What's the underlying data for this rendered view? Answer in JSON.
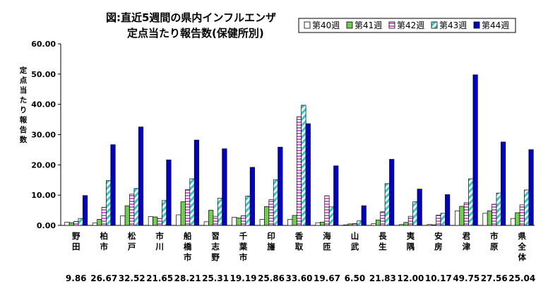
{
  "chart_data": {
    "type": "bar",
    "title_line1": "図:直近5週間の県内インフルエンザ",
    "title_line2": "定点当たり報告数(保健所別)",
    "ylabel": "定点当たり報告数",
    "ylim": [
      0,
      60
    ],
    "yticks": [
      "0.00",
      "10.00",
      "20.00",
      "30.00",
      "40.00",
      "50.00",
      "60.00"
    ],
    "grid": false,
    "legend_position": "top-right",
    "categories": [
      "野田",
      "柏市",
      "松戸",
      "市川",
      "船橋市",
      "習志野",
      "千葉市",
      "印旛",
      "香取",
      "海匝",
      "山武",
      "長生",
      "夷隅",
      "安房",
      "君津",
      "市原",
      "県全体"
    ],
    "series": [
      {
        "name": "第40週",
        "color": "#ffffff",
        "pattern": "white",
        "values": [
          1.1,
          0.8,
          3.2,
          2.9,
          3.5,
          1.2,
          2.7,
          2.0,
          2.0,
          0.9,
          0.2,
          0.6,
          0.3,
          0.3,
          4.8,
          4.0,
          2.3
        ]
      },
      {
        "name": "第41週",
        "color": "#66cc44",
        "pattern": "green",
        "values": [
          0.9,
          2.0,
          6.5,
          2.8,
          7.8,
          5.0,
          2.5,
          6.2,
          3.3,
          1.1,
          0.5,
          1.8,
          1.0,
          0.2,
          6.3,
          4.8,
          4.2
        ]
      },
      {
        "name": "第42週",
        "color": "#cc66cc",
        "pattern": "stripe",
        "values": [
          1.3,
          6.0,
          10.3,
          2.3,
          11.8,
          3.0,
          3.2,
          8.5,
          35.9,
          9.8,
          0.6,
          4.5,
          3.0,
          3.4,
          7.5,
          7.0,
          6.8
        ]
      },
      {
        "name": "第43週",
        "color": "#33cccc",
        "pattern": "diag",
        "values": [
          2.3,
          14.8,
          12.2,
          8.2,
          15.4,
          9.0,
          9.7,
          15.1,
          39.7,
          6.1,
          1.5,
          13.8,
          7.8,
          4.0,
          15.4,
          10.7,
          11.7
        ]
      },
      {
        "name": "第44週",
        "color": "#0000cc",
        "pattern": "solid",
        "values": [
          9.86,
          26.67,
          32.52,
          21.65,
          28.21,
          25.31,
          19.19,
          25.86,
          33.6,
          19.67,
          6.5,
          21.83,
          12.0,
          10.17,
          49.75,
          27.56,
          25.04
        ]
      }
    ],
    "bottom_values": [
      "9.86",
      "26.67",
      "32.52",
      "21.65",
      "28.21",
      "25.31",
      "19.19",
      "25.86",
      "33.60",
      "19.67",
      "6.50",
      "21.83",
      "12.00",
      "10.17",
      "49.75",
      "27.56",
      "25.04"
    ]
  }
}
